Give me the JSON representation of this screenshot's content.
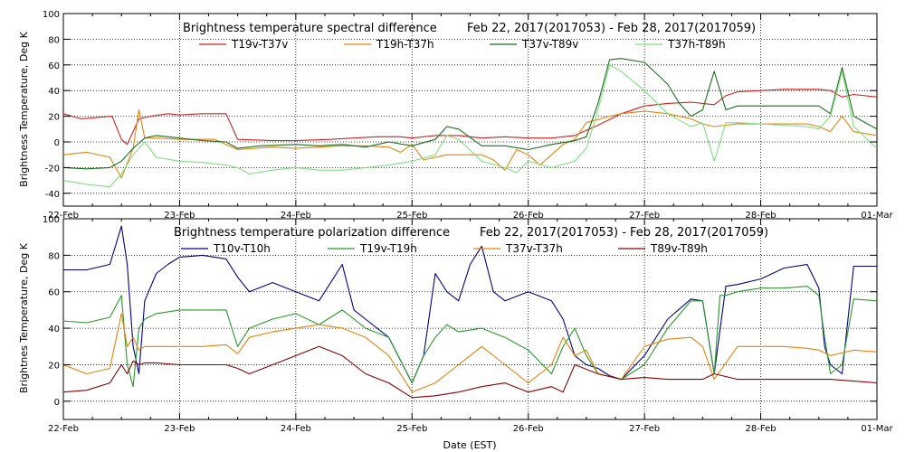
{
  "figure": {
    "xlabel": "Date (EST)"
  },
  "chart_data": [
    {
      "type": "line",
      "title": "Brightness temperature spectral difference",
      "subtitle": "Feb 22, 2017(2017053) - Feb 28, 2017(2017059)",
      "ylabel": "Brightness Temperature, Deg K",
      "xlabel": "",
      "x_ticks": [
        "22-Feb",
        "23-Feb",
        "24-Feb",
        "25-Feb",
        "26-Feb",
        "27-Feb",
        "28-Feb",
        "01-Mar"
      ],
      "xlim": [
        0,
        7
      ],
      "ylim": [
        -50,
        100
      ],
      "y_ticks": [
        -40,
        -20,
        0,
        20,
        40,
        60,
        80,
        100
      ],
      "grid": true,
      "grid_style": "dotted",
      "series": [
        {
          "name": "T19v-T37v",
          "color": "#d42020",
          "x": [
            0.0,
            0.15,
            0.42,
            0.5,
            0.55,
            0.65,
            0.75,
            0.9,
            1.0,
            1.2,
            1.4,
            1.5,
            1.8,
            2.0,
            2.3,
            2.5,
            2.7,
            2.9,
            3.0,
            3.2,
            3.4,
            3.6,
            3.8,
            4.0,
            4.2,
            4.4,
            4.6,
            4.8,
            5.0,
            5.2,
            5.4,
            5.6,
            5.7,
            5.8,
            6.0,
            6.2,
            6.4,
            6.5,
            6.6,
            6.7,
            6.8,
            7.0
          ],
          "values": [
            22,
            18,
            20,
            2,
            -2,
            18,
            20,
            22,
            21,
            22,
            22,
            2,
            1,
            1,
            2,
            3,
            4,
            4,
            3,
            5,
            5,
            3,
            4,
            3,
            3,
            5,
            13,
            22,
            28,
            30,
            31,
            29,
            36,
            39,
            40,
            41,
            41,
            41,
            40,
            35,
            37,
            35
          ]
        },
        {
          "name": "T19h-T37h",
          "color": "#e8820c",
          "x": [
            0.0,
            0.2,
            0.4,
            0.5,
            0.6,
            0.65,
            0.7,
            0.8,
            1.0,
            1.3,
            1.5,
            1.8,
            2.0,
            2.2,
            2.4,
            2.6,
            2.8,
            2.9,
            3.0,
            3.1,
            3.3,
            3.5,
            3.6,
            3.7,
            3.8,
            3.9,
            4.0,
            4.1,
            4.3,
            4.4,
            4.5,
            4.7,
            4.8,
            5.0,
            5.2,
            5.4,
            5.5,
            5.6,
            5.7,
            5.8,
            6.0,
            6.2,
            6.4,
            6.5,
            6.6,
            6.7,
            6.8,
            7.0
          ],
          "values": [
            -10,
            -8,
            -12,
            -28,
            -5,
            25,
            3,
            3,
            2,
            2,
            -6,
            -4,
            -5,
            -4,
            -3,
            -3,
            -4,
            -8,
            -2,
            -14,
            -10,
            -10,
            -10,
            -14,
            -22,
            -6,
            -10,
            -18,
            -2,
            2,
            15,
            20,
            22,
            24,
            22,
            18,
            14,
            12,
            13,
            14,
            14,
            14,
            14,
            12,
            8,
            20,
            8,
            5
          ]
        },
        {
          "name": "T37v-T89v",
          "color": "#1a6e1a",
          "x": [
            0.0,
            0.2,
            0.4,
            0.5,
            0.6,
            0.7,
            0.8,
            1.0,
            1.2,
            1.4,
            1.5,
            1.7,
            2.0,
            2.2,
            2.4,
            2.6,
            2.8,
            3.0,
            3.2,
            3.3,
            3.4,
            3.6,
            3.8,
            4.0,
            4.2,
            4.4,
            4.5,
            4.6,
            4.7,
            4.8,
            5.0,
            5.2,
            5.3,
            5.4,
            5.5,
            5.6,
            5.7,
            5.8,
            6.0,
            6.2,
            6.4,
            6.5,
            6.6,
            6.7,
            6.8,
            7.0
          ],
          "values": [
            -20,
            -21,
            -20,
            -15,
            -5,
            3,
            5,
            3,
            1,
            0,
            -5,
            -3,
            -2,
            -3,
            -2,
            -4,
            0,
            -3,
            2,
            12,
            10,
            -3,
            -3,
            -6,
            -2,
            1,
            4,
            30,
            64,
            65,
            62,
            45,
            30,
            20,
            25,
            55,
            25,
            28,
            28,
            28,
            28,
            28,
            22,
            58,
            20,
            10
          ]
        },
        {
          "name": "T37h-T89h",
          "color": "#7fe07f",
          "x": [
            0.0,
            0.2,
            0.4,
            0.5,
            0.6,
            0.7,
            0.8,
            1.0,
            1.2,
            1.4,
            1.5,
            1.6,
            1.8,
            2.0,
            2.2,
            2.4,
            2.6,
            2.8,
            3.0,
            3.2,
            3.3,
            3.4,
            3.6,
            3.8,
            3.9,
            4.0,
            4.2,
            4.4,
            4.5,
            4.6,
            4.7,
            4.8,
            5.0,
            5.2,
            5.4,
            5.5,
            5.6,
            5.7,
            5.8,
            6.0,
            6.2,
            6.4,
            6.5,
            6.6,
            6.7,
            6.8,
            7.0
          ],
          "values": [
            -30,
            -33,
            -35,
            -25,
            -10,
            0,
            -12,
            -15,
            -16,
            -18,
            -20,
            -25,
            -22,
            -20,
            -22,
            -22,
            -20,
            -18,
            -15,
            -10,
            5,
            2,
            -15,
            -20,
            -24,
            -15,
            -20,
            -15,
            -5,
            25,
            60,
            55,
            40,
            22,
            12,
            15,
            -15,
            15,
            15,
            14,
            13,
            12,
            10,
            20,
            55,
            12,
            -5
          ]
        }
      ]
    },
    {
      "type": "line",
      "title": "Brightness temperature polarization difference",
      "subtitle": "Feb 22, 2017(2017053) - Feb 28, 2017(2017059)",
      "ylabel": "Brightnes Temperature, Deg K",
      "xlabel": "Date (EST)",
      "x_ticks": [
        "22-Feb",
        "23-Feb",
        "24-Feb",
        "25-Feb",
        "26-Feb",
        "27-Feb",
        "28-Feb",
        "01-Mar"
      ],
      "xlim": [
        0,
        7
      ],
      "ylim": [
        -10,
        100
      ],
      "y_ticks": [
        0,
        20,
        40,
        60,
        80,
        100
      ],
      "grid": true,
      "grid_style": "dotted",
      "series": [
        {
          "name": "T10v-T10h",
          "color": "#00008b",
          "x": [
            0.0,
            0.2,
            0.4,
            0.5,
            0.55,
            0.6,
            0.65,
            0.7,
            0.8,
            0.9,
            1.0,
            1.2,
            1.4,
            1.5,
            1.6,
            1.8,
            2.0,
            2.2,
            2.3,
            2.4,
            2.5,
            2.6,
            2.8,
            3.0,
            3.1,
            3.2,
            3.3,
            3.4,
            3.5,
            3.6,
            3.7,
            3.8,
            4.0,
            4.2,
            4.3,
            4.4,
            4.5,
            4.6,
            4.7,
            4.8,
            5.0,
            5.2,
            5.4,
            5.5,
            5.6,
            5.7,
            5.8,
            6.0,
            6.2,
            6.4,
            6.5,
            6.55,
            6.6,
            6.7,
            6.8,
            7.0
          ],
          "values": [
            72,
            72,
            75,
            96,
            75,
            30,
            15,
            55,
            70,
            75,
            79,
            80,
            78,
            68,
            60,
            65,
            60,
            55,
            65,
            75,
            50,
            45,
            35,
            10,
            25,
            70,
            60,
            55,
            75,
            85,
            60,
            55,
            60,
            55,
            45,
            25,
            20,
            18,
            14,
            12,
            25,
            45,
            56,
            55,
            15,
            63,
            64,
            67,
            73,
            75,
            62,
            30,
            20,
            15,
            74,
            74
          ]
        },
        {
          "name": "T19v-T19h",
          "color": "#2a9a2a",
          "x": [
            0.0,
            0.2,
            0.4,
            0.5,
            0.55,
            0.6,
            0.65,
            0.7,
            0.8,
            1.0,
            1.2,
            1.4,
            1.5,
            1.6,
            1.8,
            2.0,
            2.2,
            2.4,
            2.6,
            2.8,
            3.0,
            3.1,
            3.2,
            3.3,
            3.4,
            3.6,
            3.8,
            4.0,
            4.2,
            4.3,
            4.4,
            4.5,
            4.6,
            4.8,
            5.0,
            5.2,
            5.4,
            5.5,
            5.6,
            5.65,
            5.7,
            5.8,
            6.0,
            6.2,
            6.4,
            6.5,
            6.55,
            6.6,
            6.7,
            6.8,
            7.0
          ],
          "values": [
            44,
            43,
            46,
            58,
            20,
            8,
            40,
            45,
            48,
            50,
            50,
            50,
            30,
            40,
            45,
            48,
            42,
            50,
            40,
            35,
            10,
            25,
            35,
            42,
            38,
            40,
            35,
            28,
            15,
            30,
            40,
            25,
            15,
            12,
            20,
            40,
            55,
            55,
            15,
            58,
            58,
            60,
            62,
            62,
            63,
            58,
            35,
            15,
            20,
            56,
            55
          ]
        },
        {
          "name": "T37v-T37h",
          "color": "#e8820c",
          "x": [
            0.0,
            0.2,
            0.4,
            0.5,
            0.55,
            0.6,
            0.65,
            0.7,
            0.8,
            1.0,
            1.2,
            1.4,
            1.5,
            1.6,
            1.8,
            2.0,
            2.2,
            2.4,
            2.6,
            2.8,
            3.0,
            3.2,
            3.4,
            3.6,
            3.8,
            4.0,
            4.2,
            4.3,
            4.4,
            4.5,
            4.6,
            4.8,
            5.0,
            5.2,
            5.4,
            5.5,
            5.6,
            5.8,
            6.0,
            6.2,
            6.4,
            6.5,
            6.6,
            6.8,
            7.0
          ],
          "values": [
            20,
            15,
            18,
            48,
            30,
            35,
            28,
            30,
            30,
            30,
            30,
            31,
            26,
            35,
            38,
            40,
            42,
            40,
            35,
            25,
            5,
            10,
            20,
            30,
            20,
            10,
            20,
            35,
            25,
            28,
            15,
            12,
            30,
            34,
            35,
            30,
            12,
            30,
            30,
            30,
            29,
            28,
            25,
            28,
            27
          ]
        },
        {
          "name": "T89v-T89h",
          "color": "#8b0000",
          "x": [
            0.0,
            0.2,
            0.4,
            0.5,
            0.55,
            0.6,
            0.65,
            0.7,
            0.8,
            1.0,
            1.2,
            1.4,
            1.5,
            1.6,
            1.8,
            2.0,
            2.2,
            2.4,
            2.6,
            2.8,
            3.0,
            3.2,
            3.4,
            3.6,
            3.8,
            4.0,
            4.2,
            4.3,
            4.4,
            4.6,
            4.8,
            5.0,
            5.2,
            5.4,
            5.5,
            5.6,
            5.8,
            6.0,
            6.2,
            6.4,
            6.6,
            6.8,
            7.0
          ],
          "values": [
            5,
            6,
            10,
            20,
            15,
            22,
            20,
            21,
            21,
            20,
            20,
            20,
            18,
            15,
            20,
            25,
            30,
            25,
            15,
            10,
            2,
            3,
            5,
            8,
            10,
            5,
            8,
            5,
            20,
            15,
            12,
            13,
            12,
            12,
            12,
            15,
            12,
            12,
            12,
            12,
            12,
            11,
            10
          ]
        }
      ]
    }
  ]
}
